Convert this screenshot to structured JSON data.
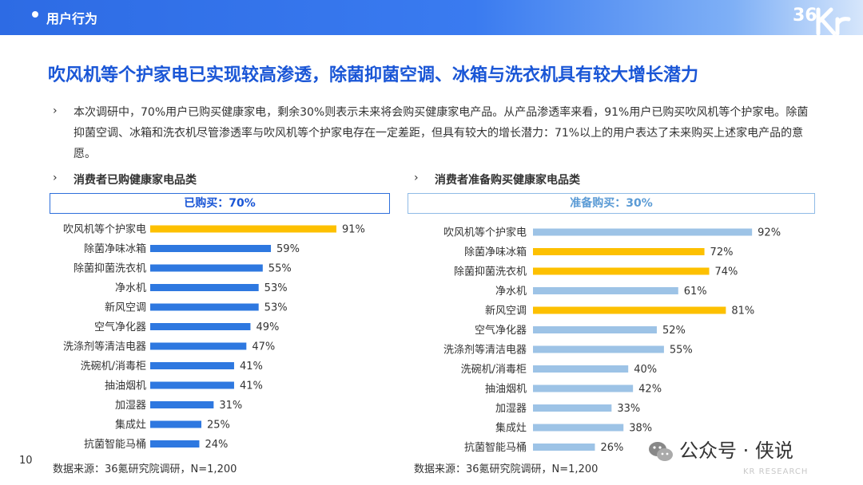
{
  "header": {
    "section": "用户行为",
    "logo_text": "36Kr"
  },
  "headline": "吹风机等个护家电已实现较高渗透，除菌抑菌空调、冰箱与洗衣机具有较大增长潜力",
  "intro": "本次调研中，70%用户已购买健康家电，剩余30%则表示未来将会购买健康家电产品。从产品渗透率来看，91%用户已购买吹风机等个护家电。除菌抑菌空调、冰箱和洗衣机尽管渗透率与吹风机等个护家电存在一定差距，但具有较大的增长潜力：71%以上的用户表达了未来购买上述家电产品的意愿。",
  "bullet_glyph": "›",
  "page_number": "10",
  "watermark": {
    "text": "公众号 · 侠说",
    "sub": "KR RESEARCH"
  },
  "colors": {
    "blue": "#2e78e0",
    "light_blue": "#9dc3e6",
    "yellow": "#fdc000",
    "accent": "#1a56d6"
  },
  "chart_data": [
    {
      "type": "bar",
      "orientation": "horizontal",
      "title": "消费者已购健康家电品类",
      "box_label": "已购买：70%",
      "source": "数据来源：36氪研究院调研，N=1,200",
      "categories": [
        "吹风机等个护家电",
        "除菌净味冰箱",
        "除菌抑菌洗衣机",
        "净水机",
        "新风空调",
        "空气净化器",
        "洗涤剂等清洁电器",
        "洗碗机/消毒柜",
        "抽油烟机",
        "加湿器",
        "集成灶",
        "抗菌智能马桶"
      ],
      "values": [
        91,
        59,
        55,
        53,
        53,
        49,
        47,
        41,
        41,
        31,
        25,
        24
      ],
      "unit": "%",
      "bar_colors": [
        "#fdc000",
        "#2e78e0",
        "#2e78e0",
        "#2e78e0",
        "#2e78e0",
        "#2e78e0",
        "#2e78e0",
        "#2e78e0",
        "#2e78e0",
        "#2e78e0",
        "#2e78e0",
        "#2e78e0"
      ],
      "xlim": [
        0,
        100
      ],
      "grid": false
    },
    {
      "type": "bar",
      "orientation": "horizontal",
      "title": "消费者准备购买健康家电品类",
      "box_label": "准备购买：30%",
      "source": "数据来源：36氪研究院调研，N=1,200",
      "categories": [
        "吹风机等个护家电",
        "除菌净味冰箱",
        "除菌抑菌洗衣机",
        "净水机",
        "新风空调",
        "空气净化器",
        "洗涤剂等清洁电器",
        "洗碗机/消毒柜",
        "抽油烟机",
        "加湿器",
        "集成灶",
        "抗菌智能马桶"
      ],
      "values": [
        92,
        72,
        74,
        61,
        81,
        52,
        55,
        40,
        42,
        33,
        38,
        26
      ],
      "unit": "%",
      "bar_colors": [
        "#9dc3e6",
        "#fdc000",
        "#fdc000",
        "#9dc3e6",
        "#fdc000",
        "#9dc3e6",
        "#9dc3e6",
        "#9dc3e6",
        "#9dc3e6",
        "#9dc3e6",
        "#9dc3e6",
        "#9dc3e6"
      ],
      "xlim": [
        0,
        100
      ],
      "grid": false
    }
  ]
}
